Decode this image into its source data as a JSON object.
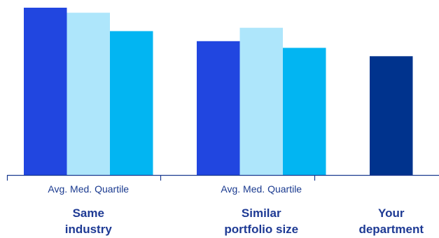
{
  "chart_data": {
    "type": "bar",
    "groups": [
      {
        "label_lines": [
          "Same",
          "industry"
        ],
        "sublabel": "Avg. Med. Quartile",
        "bars": [
          {
            "name": "Avg.",
            "value": 100,
            "color": "#2146e0"
          },
          {
            "name": "Med.",
            "value": 97,
            "color": "#aee6fb"
          },
          {
            "name": "Quartile",
            "value": 86,
            "color": "#02b5f2"
          }
        ]
      },
      {
        "label_lines": [
          "Similar",
          "portfolio size"
        ],
        "sublabel": "Avg. Med. Quartile",
        "bars": [
          {
            "name": "Avg.",
            "value": 80,
            "color": "#2146e0"
          },
          {
            "name": "Med.",
            "value": 88,
            "color": "#aee6fb"
          },
          {
            "name": "Quartile",
            "value": 76,
            "color": "#02b5f2"
          }
        ]
      },
      {
        "label_lines": [
          "Your",
          "department"
        ],
        "sublabel": "",
        "bars": [
          {
            "name": "",
            "value": 71,
            "color": "#00338d"
          }
        ]
      }
    ],
    "ylim": [
      0,
      100
    ],
    "grid": false,
    "legend": "none",
    "axis_color": "#1a3a8f"
  }
}
